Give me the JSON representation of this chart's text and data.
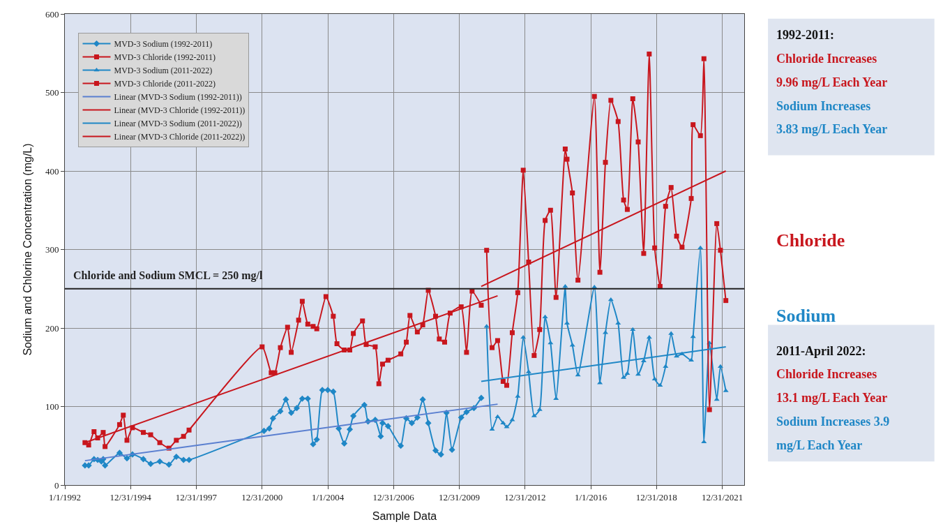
{
  "chart_data": {
    "type": "line",
    "xlabel": "Sample Data",
    "ylabel": "Sodium and Chlorine Concentration (mg/L)",
    "xlim": [
      "1992-01-01",
      "2023-01-01"
    ],
    "xticks": [
      {
        "value": "1992-01-01",
        "label": "1/1/1992"
      },
      {
        "value": "1994-12-31",
        "label": "12/31/1994"
      },
      {
        "value": "1997-12-31",
        "label": "12/31/1997"
      },
      {
        "value": "2000-12-31",
        "label": "12/31/2000"
      },
      {
        "value": "2004-01-01",
        "label": "1/1/2004"
      },
      {
        "value": "2006-12-31",
        "label": "12/31/2006"
      },
      {
        "value": "2009-12-31",
        "label": "12/31/2009"
      },
      {
        "value": "2012-12-31",
        "label": "12/31/2012"
      },
      {
        "value": "2016-01-01",
        "label": "1/1/2016"
      },
      {
        "value": "2018-12-31",
        "label": "12/31/2018"
      },
      {
        "value": "2021-12-31",
        "label": "12/31/2021"
      }
    ],
    "ylim": [
      0,
      600
    ],
    "yticks": [
      0,
      100,
      200,
      300,
      400,
      500,
      600
    ],
    "grid": true,
    "legend": "top left",
    "line_style": "solid",
    "series": [
      {
        "name": "MVD-3 Sodium (1992-2011)",
        "color": "#1f87c6",
        "marker": "diamond",
        "x": [
          "1992-12",
          "1993-02",
          "1993-05",
          "1993-07",
          "1993-09",
          "1993-10",
          "1993-11",
          "1994-07",
          "1994-11",
          "1995-02",
          "1995-08",
          "1995-12",
          "1996-05",
          "1996-10",
          "1997-02",
          "1997-06",
          "1997-09",
          "2001-02",
          "2001-05",
          "2001-07",
          "2001-11",
          "2002-02",
          "2002-05",
          "2002-08",
          "2002-11",
          "2003-02",
          "2003-05",
          "2003-07",
          "2003-10",
          "2004-01",
          "2004-04",
          "2004-07",
          "2004-10",
          "2005-01",
          "2005-03",
          "2005-09",
          "2005-11",
          "2006-03",
          "2006-06",
          "2006-07",
          "2006-10",
          "2007-05",
          "2007-08",
          "2007-11",
          "2008-02",
          "2008-05",
          "2008-08",
          "2008-12",
          "2009-03",
          "2009-06",
          "2009-09",
          "2010-02",
          "2010-05",
          "2010-09",
          "2011-01"
        ],
        "values": [
          25,
          25,
          33,
          32,
          30,
          33,
          25,
          41,
          34,
          39,
          33,
          27,
          30,
          26,
          36,
          32,
          32,
          69,
          72,
          85,
          94,
          109,
          92,
          98,
          110,
          110,
          52,
          58,
          121,
          121,
          119,
          72,
          53,
          71,
          88,
          102,
          81,
          83,
          62,
          79,
          75,
          50,
          85,
          79,
          86,
          109,
          79,
          44,
          39,
          92,
          45,
          86,
          93,
          98,
          111
        ]
      },
      {
        "name": "MVD-3 Chloride (1992-2011)",
        "color": "#c8161d",
        "marker": "square",
        "x": [
          "1992-12",
          "1993-02",
          "1993-05",
          "1993-07",
          "1993-10",
          "1993-11",
          "1994-07",
          "1994-09",
          "1994-11",
          "1995-02",
          "1995-08",
          "1995-12",
          "1996-05",
          "1996-10",
          "1997-02",
          "1997-06",
          "1997-09",
          "2001-01",
          "2001-06",
          "2001-08",
          "2001-11",
          "2002-03",
          "2002-05",
          "2002-09",
          "2002-11",
          "2003-02",
          "2003-05",
          "2003-07",
          "2003-12",
          "2004-04",
          "2004-06",
          "2004-10",
          "2005-01",
          "2005-03",
          "2005-08",
          "2005-10",
          "2006-03",
          "2006-05",
          "2006-07",
          "2006-10",
          "2007-05",
          "2007-08",
          "2007-10",
          "2008-02",
          "2008-05",
          "2008-08",
          "2008-12",
          "2009-02",
          "2009-05",
          "2009-08",
          "2010-02",
          "2010-05",
          "2010-08",
          "2011-01"
        ],
        "values": [
          54,
          51,
          68,
          60,
          67,
          49,
          77,
          89,
          57,
          73,
          67,
          64,
          54,
          47,
          57,
          62,
          70,
          176,
          143,
          143,
          175,
          201,
          169,
          210,
          234,
          205,
          202,
          199,
          240,
          215,
          180,
          172,
          172,
          193,
          209,
          179,
          176,
          129,
          154,
          159,
          167,
          182,
          216,
          195,
          204,
          248,
          215,
          186,
          182,
          219,
          227,
          169,
          247,
          229
        ]
      },
      {
        "name": "MVD-3 Sodium (2011-2022)",
        "color": "#1f87c6",
        "marker": "triangle",
        "x": [
          "2011-04",
          "2011-07",
          "2011-10",
          "2012-01",
          "2012-03",
          "2012-06",
          "2012-09",
          "2012-12",
          "2013-03",
          "2013-06",
          "2013-09",
          "2013-12",
          "2014-03",
          "2014-06",
          "2014-11",
          "2014-12",
          "2015-03",
          "2015-06",
          "2016-03",
          "2016-06",
          "2016-09",
          "2016-12",
          "2017-04",
          "2017-07",
          "2017-09",
          "2017-12",
          "2018-03",
          "2018-06",
          "2018-09",
          "2018-12",
          "2019-03",
          "2019-06",
          "2019-09",
          "2019-12",
          "2020-03",
          "2020-08",
          "2020-09",
          "2021-01",
          "2021-03",
          "2021-06",
          "2021-10",
          "2021-12",
          "2022-03"
        ],
        "values": [
          202,
          71,
          87,
          79,
          74,
          83,
          113,
          188,
          144,
          88,
          96,
          214,
          181,
          110,
          253,
          206,
          178,
          140,
          252,
          130,
          194,
          236,
          206,
          137,
          142,
          198,
          141,
          158,
          188,
          135,
          127,
          151,
          193,
          164,
          167,
          159,
          189,
          302,
          55,
          181,
          109,
          151,
          120
        ]
      },
      {
        "name": "MVD-3 Chloride (2011-2022)",
        "color": "#c8161d",
        "marker": "square",
        "x": [
          "2011-04",
          "2011-07",
          "2011-10",
          "2012-01",
          "2012-03",
          "2012-06",
          "2012-09",
          "2012-12",
          "2013-03",
          "2013-06",
          "2013-09",
          "2013-12",
          "2014-03",
          "2014-06",
          "2014-11",
          "2014-12",
          "2015-03",
          "2015-06",
          "2016-03",
          "2016-06",
          "2016-09",
          "2016-12",
          "2017-04",
          "2017-07",
          "2017-09",
          "2017-12",
          "2018-03",
          "2018-06",
          "2018-09",
          "2018-12",
          "2019-03",
          "2019-06",
          "2019-09",
          "2019-12",
          "2020-03",
          "2020-08",
          "2020-09",
          "2021-01",
          "2021-03",
          "2021-06",
          "2021-10",
          "2021-12",
          "2022-03"
        ],
        "values": [
          299,
          175,
          184,
          132,
          127,
          194,
          245,
          401,
          284,
          165,
          198,
          337,
          350,
          239,
          428,
          415,
          372,
          261,
          495,
          271,
          411,
          490,
          463,
          363,
          351,
          492,
          437,
          295,
          549,
          302,
          253,
          355,
          379,
          317,
          303,
          365,
          459,
          445,
          543,
          96,
          333,
          299,
          235
        ]
      },
      {
        "name": "Linear (MVD-3 Sodium (1992-2011))",
        "color": "#5a7fd0",
        "marker": "none",
        "x": [
          "1992-12",
          "2011-10"
        ],
        "values": [
          31,
          103
        ]
      },
      {
        "name": "Linear (MVD-3 Chloride (1992-2011))",
        "color": "#c8161d",
        "marker": "none",
        "x": [
          "1992-12",
          "2011-10"
        ],
        "values": [
          54,
          241
        ]
      },
      {
        "name": "Linear (MVD-3 Sodium (2011-2022))",
        "color": "#1f87c6",
        "marker": "none",
        "x": [
          "2011-01",
          "2022-03"
        ],
        "values": [
          132,
          176
        ]
      },
      {
        "name": "Linear (MVD-3 Chloride (2011-2022))",
        "color": "#c8161d",
        "marker": "none",
        "x": [
          "2011-01",
          "2022-03"
        ],
        "values": [
          253,
          400
        ]
      }
    ],
    "ref_lines": [
      {
        "axis": "y",
        "value": 250,
        "label": "Chloride and Sodium SMCL = 250 mg/l",
        "color": "#222222",
        "line_style": "solid"
      }
    ],
    "annotations": [
      "1992-2011:",
      "Chloride Increases",
      "9.96 mg/L Each Year",
      "Sodium Increases",
      "3.83 mg/L Each Year",
      "Chloride",
      "Sodium",
      "2011-April 2022:",
      "Chloride Increases",
      "13.1 mg/L Each Year",
      "Sodium Increases 3.9",
      "mg/L Each Year"
    ]
  }
}
